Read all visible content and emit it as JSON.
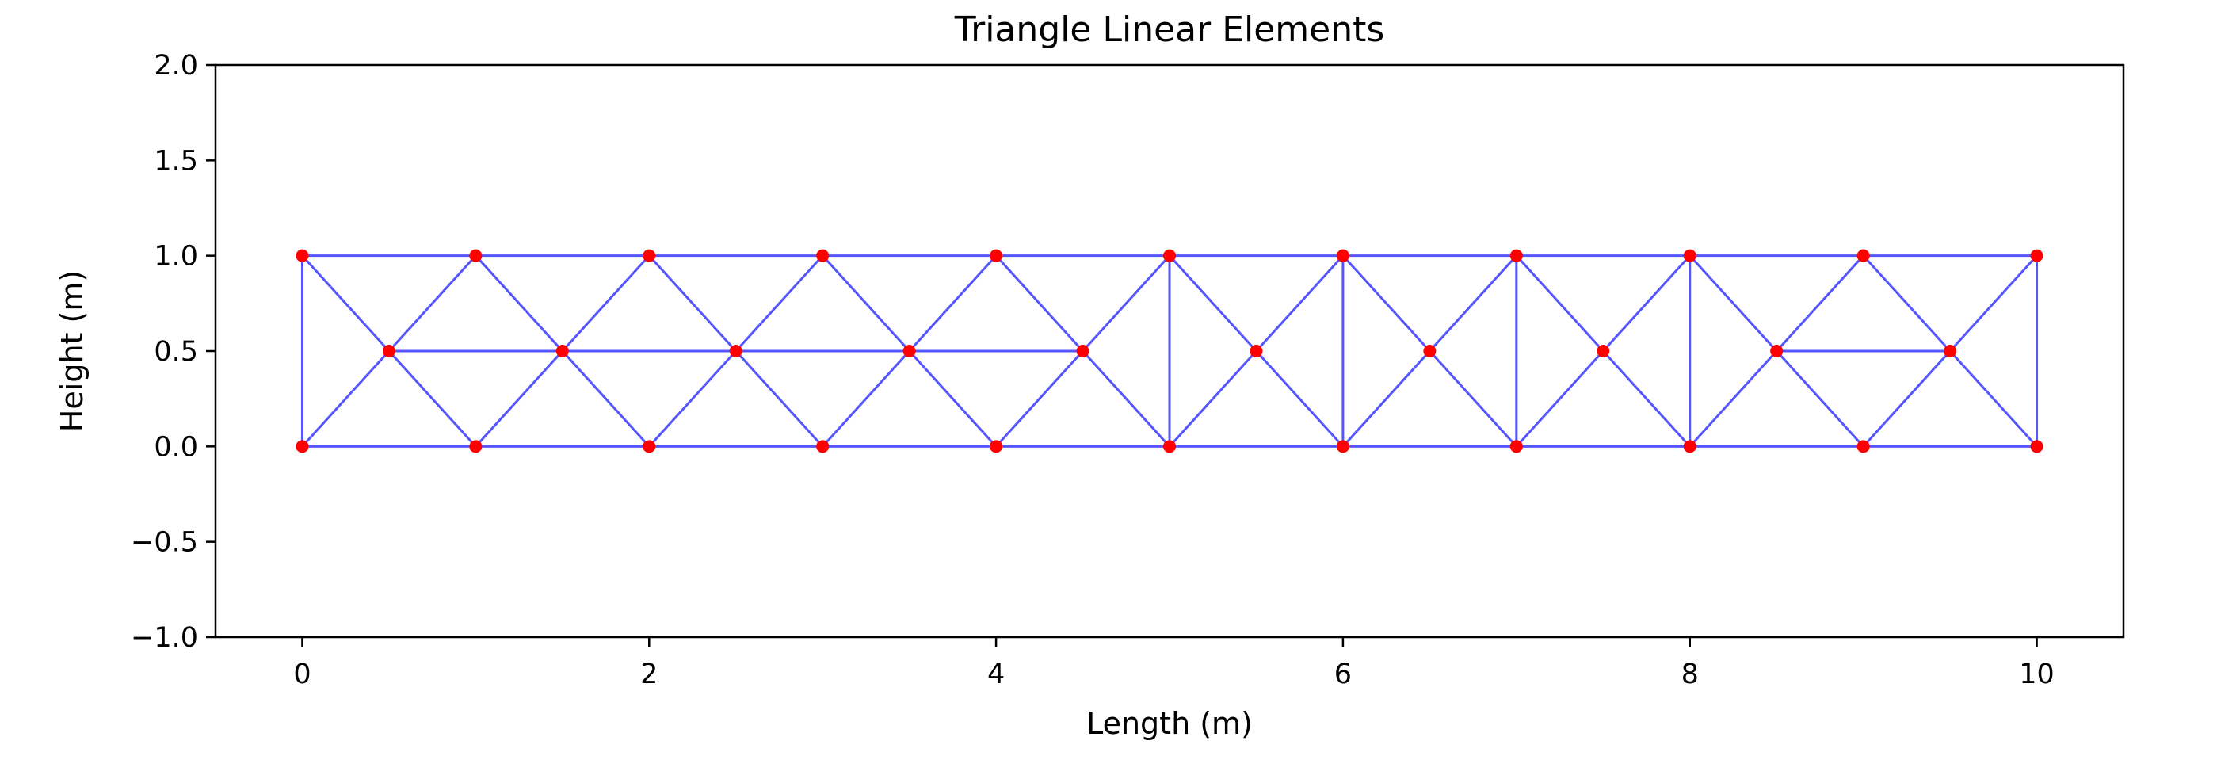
{
  "chart_data": {
    "type": "scatter",
    "title": "Triangle Linear Elements",
    "xlabel": "Length (m)",
    "ylabel": "Height (m)",
    "xlim": [
      -0.5,
      10.5
    ],
    "ylim": [
      -1.0,
      2.0
    ],
    "xticks": [
      0,
      2,
      4,
      6,
      8,
      10
    ],
    "yticks": [
      -1.0,
      -0.5,
      0.0,
      0.5,
      1.0,
      1.5,
      2.0
    ],
    "xtick_labels": [
      "0",
      "2",
      "4",
      "6",
      "8",
      "10"
    ],
    "ytick_labels": [
      "−1.0",
      "−0.5",
      "0.0",
      "0.5",
      "1.0",
      "1.5",
      "2.0"
    ],
    "grid": false,
    "colors": {
      "edges": "#5555ff",
      "nodes": "#ff0000"
    },
    "nodes": [
      {
        "x": 0,
        "y": 0
      },
      {
        "x": 1,
        "y": 0
      },
      {
        "x": 2,
        "y": 0
      },
      {
        "x": 3,
        "y": 0
      },
      {
        "x": 4,
        "y": 0
      },
      {
        "x": 5,
        "y": 0
      },
      {
        "x": 6,
        "y": 0
      },
      {
        "x": 7,
        "y": 0
      },
      {
        "x": 8,
        "y": 0
      },
      {
        "x": 9,
        "y": 0
      },
      {
        "x": 10,
        "y": 0
      },
      {
        "x": 0,
        "y": 1
      },
      {
        "x": 1,
        "y": 1
      },
      {
        "x": 2,
        "y": 1
      },
      {
        "x": 3,
        "y": 1
      },
      {
        "x": 4,
        "y": 1
      },
      {
        "x": 5,
        "y": 1
      },
      {
        "x": 6,
        "y": 1
      },
      {
        "x": 7,
        "y": 1
      },
      {
        "x": 8,
        "y": 1
      },
      {
        "x": 9,
        "y": 1
      },
      {
        "x": 10,
        "y": 1
      },
      {
        "x": 0.5,
        "y": 0.5
      },
      {
        "x": 1.5,
        "y": 0.5
      },
      {
        "x": 2.5,
        "y": 0.5
      },
      {
        "x": 3.5,
        "y": 0.5
      },
      {
        "x": 4.5,
        "y": 0.5
      },
      {
        "x": 5.5,
        "y": 0.5
      },
      {
        "x": 6.5,
        "y": 0.5
      },
      {
        "x": 7.5,
        "y": 0.5
      },
      {
        "x": 8.5,
        "y": 0.5
      },
      {
        "x": 9.5,
        "y": 0.5
      }
    ],
    "edges": [
      [
        [
          0,
          0
        ],
        [
          10,
          0
        ]
      ],
      [
        [
          0,
          1
        ],
        [
          10,
          1
        ]
      ],
      [
        [
          0,
          0
        ],
        [
          0,
          1
        ]
      ],
      [
        [
          10,
          0
        ],
        [
          10,
          1
        ]
      ],
      [
        [
          0.5,
          0.5
        ],
        [
          4.5,
          0.5
        ]
      ],
      [
        [
          8.5,
          0.5
        ],
        [
          9.5,
          0.5
        ]
      ],
      [
        [
          5,
          0
        ],
        [
          5,
          1
        ]
      ],
      [
        [
          6,
          0
        ],
        [
          6,
          1
        ]
      ],
      [
        [
          7,
          0
        ],
        [
          7,
          1
        ]
      ],
      [
        [
          8,
          0
        ],
        [
          8,
          1
        ]
      ],
      [
        [
          0,
          0
        ],
        [
          0.5,
          0.5
        ]
      ],
      [
        [
          0,
          1
        ],
        [
          0.5,
          0.5
        ]
      ],
      [
        [
          1,
          0
        ],
        [
          0.5,
          0.5
        ]
      ],
      [
        [
          1,
          1
        ],
        [
          0.5,
          0.5
        ]
      ],
      [
        [
          1,
          0
        ],
        [
          1.5,
          0.5
        ]
      ],
      [
        [
          1,
          1
        ],
        [
          1.5,
          0.5
        ]
      ],
      [
        [
          2,
          0
        ],
        [
          1.5,
          0.5
        ]
      ],
      [
        [
          2,
          1
        ],
        [
          1.5,
          0.5
        ]
      ],
      [
        [
          2,
          0
        ],
        [
          2.5,
          0.5
        ]
      ],
      [
        [
          2,
          1
        ],
        [
          2.5,
          0.5
        ]
      ],
      [
        [
          3,
          0
        ],
        [
          2.5,
          0.5
        ]
      ],
      [
        [
          3,
          1
        ],
        [
          2.5,
          0.5
        ]
      ],
      [
        [
          3,
          0
        ],
        [
          3.5,
          0.5
        ]
      ],
      [
        [
          3,
          1
        ],
        [
          3.5,
          0.5
        ]
      ],
      [
        [
          4,
          0
        ],
        [
          3.5,
          0.5
        ]
      ],
      [
        [
          4,
          1
        ],
        [
          3.5,
          0.5
        ]
      ],
      [
        [
          4,
          0
        ],
        [
          4.5,
          0.5
        ]
      ],
      [
        [
          4,
          1
        ],
        [
          4.5,
          0.5
        ]
      ],
      [
        [
          5,
          0
        ],
        [
          4.5,
          0.5
        ]
      ],
      [
        [
          5,
          1
        ],
        [
          4.5,
          0.5
        ]
      ],
      [
        [
          5,
          0
        ],
        [
          5.5,
          0.5
        ]
      ],
      [
        [
          5,
          1
        ],
        [
          5.5,
          0.5
        ]
      ],
      [
        [
          6,
          0
        ],
        [
          5.5,
          0.5
        ]
      ],
      [
        [
          6,
          1
        ],
        [
          5.5,
          0.5
        ]
      ],
      [
        [
          6,
          0
        ],
        [
          6.5,
          0.5
        ]
      ],
      [
        [
          6,
          1
        ],
        [
          6.5,
          0.5
        ]
      ],
      [
        [
          7,
          0
        ],
        [
          6.5,
          0.5
        ]
      ],
      [
        [
          7,
          1
        ],
        [
          6.5,
          0.5
        ]
      ],
      [
        [
          7,
          0
        ],
        [
          7.5,
          0.5
        ]
      ],
      [
        [
          7,
          1
        ],
        [
          7.5,
          0.5
        ]
      ],
      [
        [
          8,
          0
        ],
        [
          7.5,
          0.5
        ]
      ],
      [
        [
          8,
          1
        ],
        [
          7.5,
          0.5
        ]
      ],
      [
        [
          8,
          0
        ],
        [
          8.5,
          0.5
        ]
      ],
      [
        [
          8,
          1
        ],
        [
          8.5,
          0.5
        ]
      ],
      [
        [
          9,
          0
        ],
        [
          8.5,
          0.5
        ]
      ],
      [
        [
          9,
          1
        ],
        [
          8.5,
          0.5
        ]
      ],
      [
        [
          9,
          0
        ],
        [
          9.5,
          0.5
        ]
      ],
      [
        [
          9,
          1
        ],
        [
          9.5,
          0.5
        ]
      ],
      [
        [
          10,
          0
        ],
        [
          9.5,
          0.5
        ]
      ],
      [
        [
          10,
          1
        ],
        [
          9.5,
          0.5
        ]
      ]
    ]
  }
}
